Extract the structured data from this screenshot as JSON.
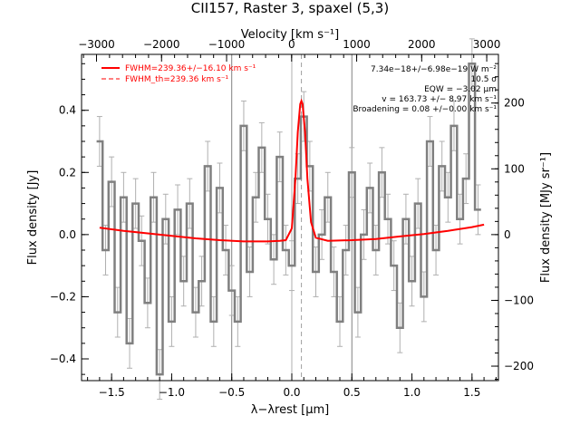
{
  "title": "CII157, Raster 3, spaxel (5,3)",
  "top_axis_label": "Velocity [km s⁻¹]",
  "xlabel": "λ−λrest [µm]",
  "ylabel_left": "Flux density [Jy]",
  "ylabel_right": "Flux density [MJy sr⁻¹]",
  "bottom_ticks": [
    "−1.5",
    "−1.0",
    "−0.5",
    "0.0",
    "0.5",
    "1.0",
    "1.5"
  ],
  "top_ticks": [
    "−3000",
    "−2000",
    "−1000",
    "0",
    "1000",
    "2000",
    "3000"
  ],
  "left_ticks": [
    "−0.4",
    "−0.2",
    "0.0",
    "0.2",
    "0.4"
  ],
  "right_ticks": [
    "−200",
    "−100",
    "0",
    "100",
    "200"
  ],
  "legend": [
    {
      "label": "FWHM=239.36+/−16.10 km s⁻¹",
      "style": "solid",
      "color": "#ff0000"
    },
    {
      "label": "FWHM_th=239.36 km s⁻¹",
      "style": "dashed",
      "color": "#ff0000"
    }
  ],
  "annotations": [
    "7.34e−18+/−6.98e−19 W m⁻²",
    "10.5 σ",
    "EQW = −3.02 µm",
    "v = 163.73 +/− 8.97 km s⁻¹",
    "Broadening = 0.08 +/−0.00 km s⁻¹"
  ],
  "colors": {
    "data": "#808080",
    "fit": "#ff0000",
    "errorbar": "#b0b0b0"
  },
  "chart_data": {
    "type": "line",
    "xlim": [
      -1.75,
      1.72
    ],
    "ylim": [
      -0.47,
      0.58
    ],
    "right_ylim": [
      -222,
      274
    ],
    "top_xlim": [
      -3230,
      3180
    ],
    "vertical_lines": [
      -0.5,
      0.5
    ],
    "rest_line": 0.0,
    "line_center": 0.08,
    "spectrum": {
      "x": [
        -1.6,
        -1.55,
        -1.5,
        -1.45,
        -1.4,
        -1.35,
        -1.3,
        -1.25,
        -1.2,
        -1.15,
        -1.1,
        -1.05,
        -1.0,
        -0.95,
        -0.9,
        -0.85,
        -0.8,
        -0.75,
        -0.7,
        -0.65,
        -0.6,
        -0.55,
        -0.5,
        -0.45,
        -0.4,
        -0.35,
        -0.3,
        -0.25,
        -0.2,
        -0.15,
        -0.1,
        -0.05,
        0.0,
        0.05,
        0.1,
        0.15,
        0.2,
        0.25,
        0.3,
        0.35,
        0.4,
        0.45,
        0.5,
        0.55,
        0.6,
        0.65,
        0.7,
        0.75,
        0.8,
        0.85,
        0.9,
        0.95,
        1.0,
        1.05,
        1.1,
        1.15,
        1.2,
        1.25,
        1.3,
        1.35,
        1.4,
        1.45,
        1.5,
        1.55
      ],
      "y": [
        0.3,
        -0.05,
        0.17,
        -0.25,
        0.12,
        -0.35,
        0.1,
        -0.02,
        -0.22,
        0.12,
        -0.45,
        0.05,
        -0.28,
        0.08,
        -0.15,
        0.1,
        -0.25,
        -0.15,
        0.22,
        -0.28,
        0.15,
        -0.05,
        -0.18,
        -0.28,
        0.35,
        -0.12,
        0.12,
        0.28,
        0.05,
        -0.08,
        0.25,
        -0.05,
        -0.1,
        0.18,
        0.38,
        0.22,
        -0.12,
        0.0,
        0.12,
        -0.12,
        -0.28,
        -0.05,
        0.2,
        -0.25,
        0.0,
        0.15,
        -0.05,
        0.2,
        0.05,
        -0.1,
        -0.3,
        0.05,
        -0.15,
        0.1,
        -0.2,
        0.3,
        -0.05,
        0.22,
        0.12,
        0.35,
        0.05,
        0.18,
        0.55,
        0.08
      ],
      "err": [
        0.08,
        0.08,
        0.08,
        0.08,
        0.08,
        0.08,
        0.08,
        0.08,
        0.08,
        0.08,
        0.08,
        0.08,
        0.08,
        0.08,
        0.08,
        0.08,
        0.08,
        0.08,
        0.08,
        0.08,
        0.08,
        0.08,
        0.08,
        0.08,
        0.08,
        0.08,
        0.08,
        0.08,
        0.08,
        0.08,
        0.08,
        0.08,
        0.08,
        0.08,
        0.08,
        0.08,
        0.08,
        0.08,
        0.08,
        0.08,
        0.08,
        0.08,
        0.08,
        0.08,
        0.08,
        0.08,
        0.08,
        0.08,
        0.08,
        0.08,
        0.08,
        0.08,
        0.08,
        0.08,
        0.08,
        0.08,
        0.08,
        0.08,
        0.08,
        0.08,
        0.08,
        0.08,
        0.08,
        0.08
      ]
    },
    "fit": {
      "x": [
        -1.6,
        -1.4,
        -1.2,
        -1.0,
        -0.8,
        -0.6,
        -0.4,
        -0.2,
        -0.1,
        -0.05,
        0.0,
        0.03,
        0.05,
        0.07,
        0.08,
        0.09,
        0.11,
        0.13,
        0.16,
        0.2,
        0.3,
        0.5,
        0.7,
        0.9,
        1.1,
        1.3,
        1.5,
        1.6
      ],
      "y": [
        0.022,
        0.012,
        0.004,
        -0.004,
        -0.012,
        -0.018,
        -0.022,
        -0.022,
        -0.02,
        -0.018,
        0.02,
        0.18,
        0.33,
        0.42,
        0.43,
        0.42,
        0.33,
        0.18,
        0.04,
        -0.01,
        -0.02,
        -0.018,
        -0.014,
        -0.006,
        0.002,
        0.012,
        0.024,
        0.032
      ]
    },
    "fit_thermal": {
      "x": [
        -0.05,
        0.0,
        0.03,
        0.05,
        0.07,
        0.08,
        0.09,
        0.11,
        0.13,
        0.16,
        0.2
      ],
      "y": [
        -0.018,
        0.02,
        0.18,
        0.33,
        0.42,
        0.43,
        0.42,
        0.33,
        0.18,
        0.04,
        -0.01
      ]
    }
  }
}
